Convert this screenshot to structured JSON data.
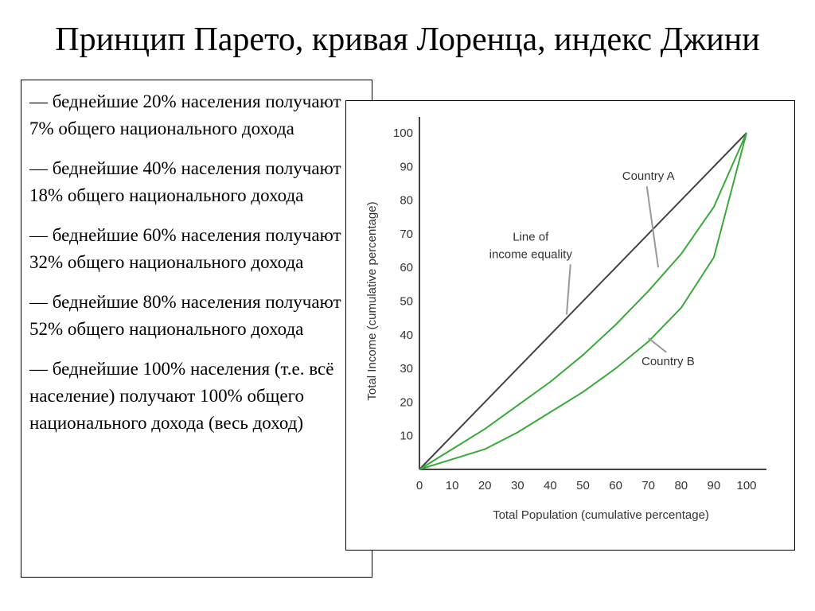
{
  "title": "Принцип Парето, кривая Лоренца, индекс Джини",
  "paragraphs": [
    "— беднейшие 20% населения получают 7% общего национального дохода",
    "— беднейшие 40% населения получают 18% общего национального дохода",
    "— беднейшие 60% населения получают 32% общего национального дохода",
    "— беднейшие 80% населения получают 52% общего национального дохода",
    "— беднейшие 100% населения (т.е. всё население) получают 100% общего национального дохода (весь доход)"
  ],
  "chart_data": {
    "type": "line",
    "xlabel": "Total Population (cumulative percentage)",
    "ylabel": "Total Income (cumulative percentage)",
    "xlim": [
      0,
      100
    ],
    "ylim": [
      0,
      100
    ],
    "x_ticks": [
      "0",
      "10",
      "20",
      "30",
      "40",
      "50",
      "60",
      "70",
      "80",
      "90",
      "100"
    ],
    "y_ticks": [
      "10",
      "20",
      "30",
      "40",
      "50",
      "60",
      "70",
      "80",
      "90",
      "100"
    ],
    "grid": false,
    "series": [
      {
        "name": "Line of income equality",
        "color": "#444444",
        "x": [
          0,
          100
        ],
        "y": [
          0,
          100
        ]
      },
      {
        "name": "Country A",
        "color": "#3aa83a",
        "x": [
          0,
          10,
          20,
          30,
          40,
          50,
          60,
          70,
          80,
          90,
          100
        ],
        "y": [
          0,
          6,
          12,
          19,
          26,
          34,
          43,
          53,
          64,
          78,
          100
        ]
      },
      {
        "name": "Country B",
        "color": "#3aa83a",
        "x": [
          0,
          10,
          20,
          30,
          40,
          50,
          60,
          70,
          80,
          90,
          100
        ],
        "y": [
          0,
          3,
          6,
          11,
          17,
          23,
          30,
          38,
          48,
          63,
          100
        ]
      }
    ],
    "annotations": [
      {
        "text_lines": [
          "Line of",
          "income    equality"
        ],
        "x": 34,
        "y": 68,
        "points_to": [
          45,
          46
        ]
      },
      {
        "text_lines": [
          "Country A"
        ],
        "x": 70,
        "y": 86,
        "points_to": [
          73,
          60
        ]
      },
      {
        "text_lines": [
          "Country B"
        ],
        "x": 76,
        "y": 31,
        "points_to": [
          70,
          39
        ]
      }
    ]
  }
}
